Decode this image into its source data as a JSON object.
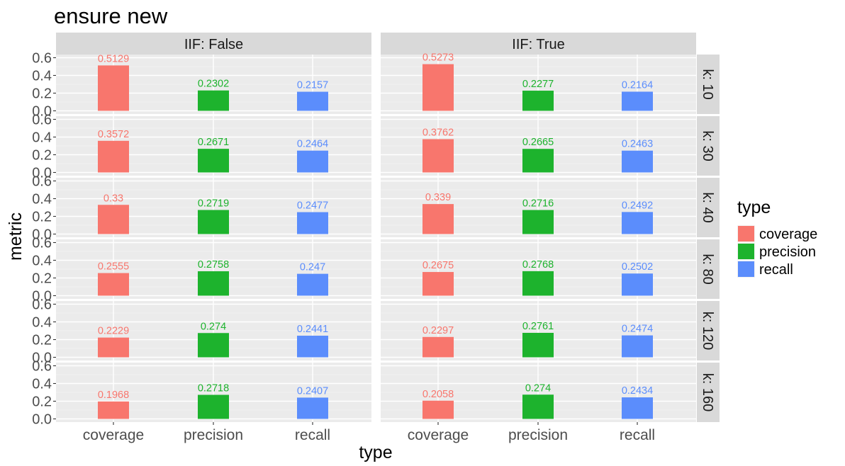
{
  "chart_data": {
    "type": "bar",
    "title": "ensure new",
    "xlabel": "type",
    "ylabel": "metric",
    "ylim": [
      0,
      0.6
    ],
    "yticks": [
      "0.0",
      "0.2",
      "0.4",
      "0.6"
    ],
    "categories": [
      "coverage",
      "precision",
      "recall"
    ],
    "legend": {
      "title": "type",
      "position": "right",
      "entries": [
        "coverage",
        "precision",
        "recall"
      ]
    },
    "colors": {
      "coverage": "#F8766D",
      "precision": "#1DB32D",
      "recall": "#5B8DFC"
    },
    "col_facets": [
      "IIF: False",
      "IIF: True"
    ],
    "row_facets": [
      "k: 10",
      "k: 30",
      "k: 40",
      "k: 80",
      "k: 120",
      "k: 160"
    ],
    "panels": [
      {
        "row": "k: 10",
        "col": "IIF: False",
        "values": [
          0.5129,
          0.2302,
          0.2157
        ],
        "labels": [
          "0.5129",
          "0.2302",
          "0.2157"
        ]
      },
      {
        "row": "k: 10",
        "col": "IIF: True",
        "values": [
          0.5273,
          0.2277,
          0.2164
        ],
        "labels": [
          "0.5273",
          "0.2277",
          "0.2164"
        ]
      },
      {
        "row": "k: 30",
        "col": "IIF: False",
        "values": [
          0.3572,
          0.2671,
          0.2464
        ],
        "labels": [
          "0.3572",
          "0.2671",
          "0.2464"
        ]
      },
      {
        "row": "k: 30",
        "col": "IIF: True",
        "values": [
          0.3762,
          0.2665,
          0.2463
        ],
        "labels": [
          "0.3762",
          "0.2665",
          "0.2463"
        ]
      },
      {
        "row": "k: 40",
        "col": "IIF: False",
        "values": [
          0.33,
          0.2719,
          0.2477
        ],
        "labels": [
          "0.33",
          "0.2719",
          "0.2477"
        ]
      },
      {
        "row": "k: 40",
        "col": "IIF: True",
        "values": [
          0.339,
          0.2716,
          0.2492
        ],
        "labels": [
          "0.339",
          "0.2716",
          "0.2492"
        ]
      },
      {
        "row": "k: 80",
        "col": "IIF: False",
        "values": [
          0.2555,
          0.2758,
          0.247
        ],
        "labels": [
          "0.2555",
          "0.2758",
          "0.247"
        ]
      },
      {
        "row": "k: 80",
        "col": "IIF: True",
        "values": [
          0.2675,
          0.2768,
          0.2502
        ],
        "labels": [
          "0.2675",
          "0.2768",
          "0.2502"
        ]
      },
      {
        "row": "k: 120",
        "col": "IIF: False",
        "values": [
          0.2229,
          0.274,
          0.2441
        ],
        "labels": [
          "0.2229",
          "0.274",
          "0.2441"
        ]
      },
      {
        "row": "k: 120",
        "col": "IIF: True",
        "values": [
          0.2297,
          0.2761,
          0.2474
        ],
        "labels": [
          "0.2297",
          "0.2761",
          "0.2474"
        ]
      },
      {
        "row": "k: 160",
        "col": "IIF: False",
        "values": [
          0.1968,
          0.2718,
          0.2407
        ],
        "labels": [
          "0.1968",
          "0.2718",
          "0.2407"
        ]
      },
      {
        "row": "k: 160",
        "col": "IIF: True",
        "values": [
          0.2058,
          0.274,
          0.2434
        ],
        "labels": [
          "0.2058",
          "0.274",
          "0.2434"
        ]
      }
    ]
  }
}
